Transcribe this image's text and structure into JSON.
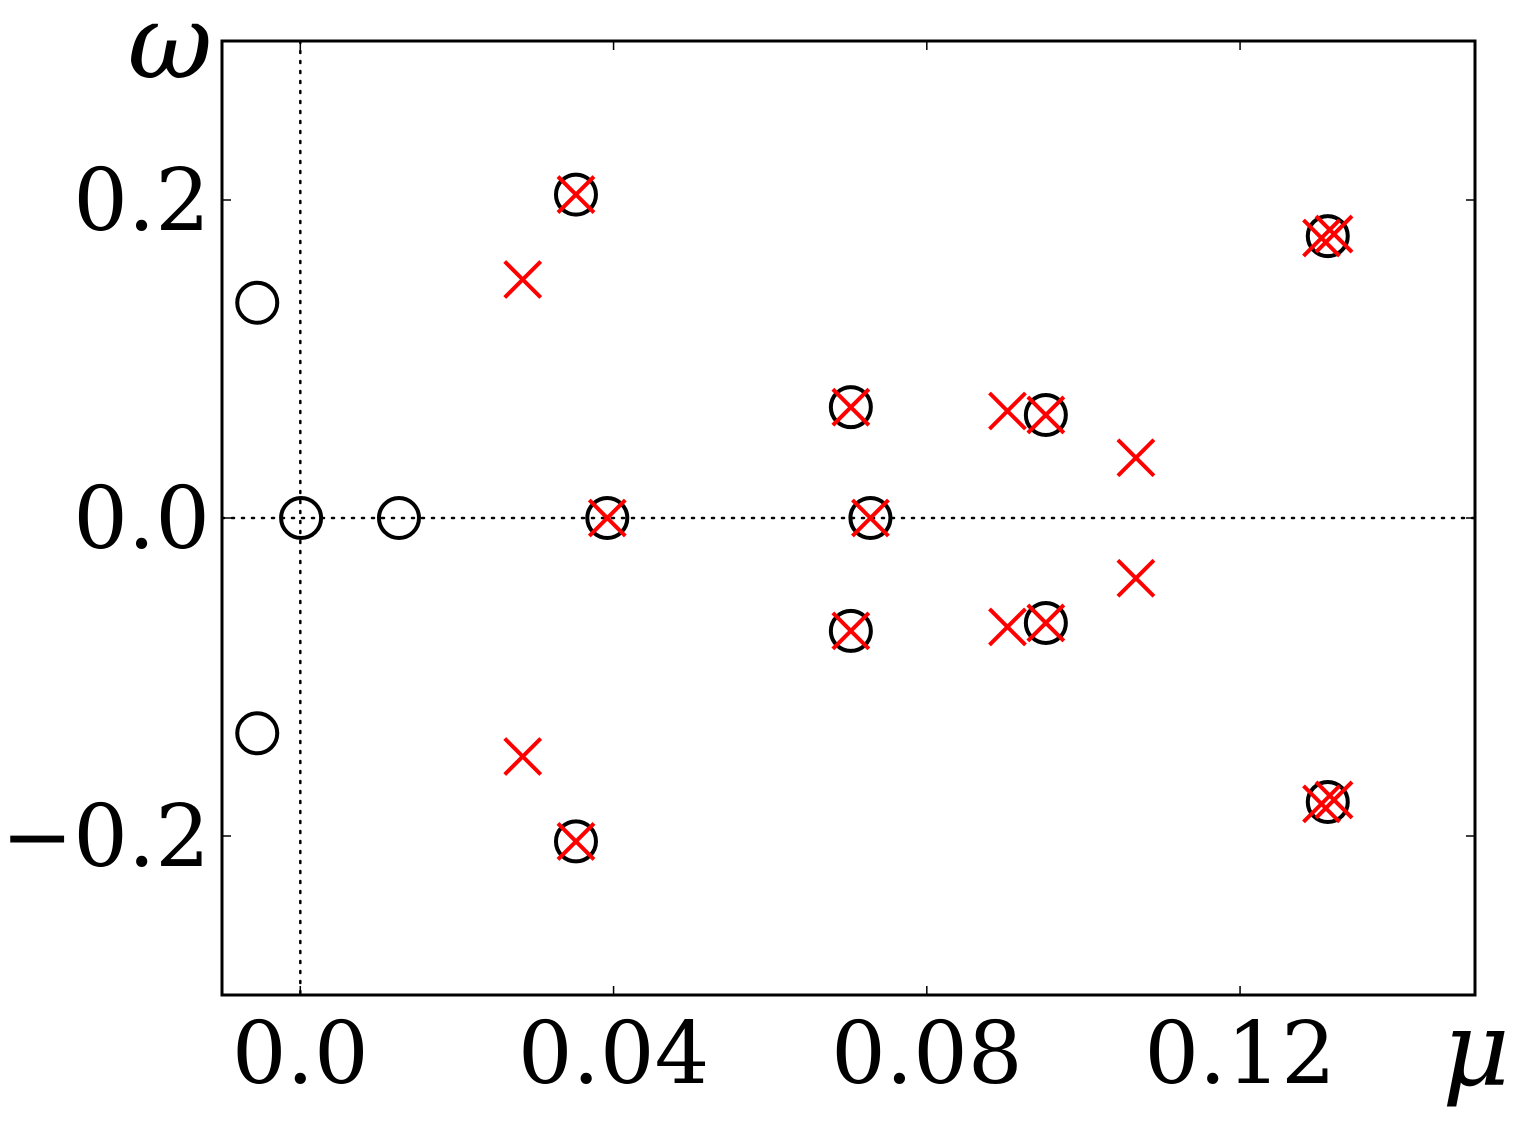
{
  "chart_data": {
    "type": "scatter",
    "title": "",
    "xlabel": "μ",
    "ylabel": "ω",
    "xlim": [
      -0.01,
      0.15
    ],
    "ylim": [
      -0.3,
      0.3
    ],
    "grid": false,
    "reference_lines": {
      "x": 0.0,
      "y": 0.0,
      "style": "dotted"
    },
    "x_ticks": [
      {
        "value": 0.0,
        "label": "0.0"
      },
      {
        "value": 0.04,
        "label": "0.04"
      },
      {
        "value": 0.08,
        "label": "0.08"
      },
      {
        "value": 0.12,
        "label": "0.12"
      }
    ],
    "y_ticks": [
      {
        "value": 0.2,
        "label": "0.2"
      },
      {
        "value": 0.0,
        "label": "0.0"
      },
      {
        "value": -0.2,
        "label": "−0.2"
      }
    ],
    "series": [
      {
        "marker": "open-circle",
        "color": "#000000",
        "points": [
          {
            "x": -0.0055,
            "y": 0.1354
          },
          {
            "x": -0.0055,
            "y": -0.1354
          },
          {
            "x": 0.0001,
            "y": 0.0
          },
          {
            "x": 0.0126,
            "y": 0.0
          },
          {
            "x": 0.0392,
            "y": 0.0
          },
          {
            "x": 0.0352,
            "y": 0.2034
          },
          {
            "x": 0.0352,
            "y": -0.2034
          },
          {
            "x": 0.0703,
            "y": 0.0697
          },
          {
            "x": 0.0703,
            "y": -0.071
          },
          {
            "x": 0.0728,
            "y": 0.0
          },
          {
            "x": 0.0952,
            "y": 0.0648
          },
          {
            "x": 0.0952,
            "y": -0.066
          },
          {
            "x": 0.1312,
            "y": 0.1773
          },
          {
            "x": 0.1312,
            "y": -0.1786
          }
        ]
      },
      {
        "marker": "x",
        "color": "#ff0000",
        "points": [
          {
            "x": 0.0284,
            "y": 0.15
          },
          {
            "x": 0.0284,
            "y": -0.15
          },
          {
            "x": 0.0352,
            "y": 0.2034
          },
          {
            "x": 0.0352,
            "y": -0.2034
          },
          {
            "x": 0.0392,
            "y": 0.0
          },
          {
            "x": 0.0703,
            "y": 0.0697
          },
          {
            "x": 0.0703,
            "y": -0.071
          },
          {
            "x": 0.0728,
            "y": 0.0
          },
          {
            "x": 0.0903,
            "y": 0.0673
          },
          {
            "x": 0.0903,
            "y": -0.0685
          },
          {
            "x": 0.0952,
            "y": 0.0648
          },
          {
            "x": 0.0952,
            "y": -0.066
          },
          {
            "x": 0.1067,
            "y": 0.0379
          },
          {
            "x": 0.1067,
            "y": -0.0379
          },
          {
            "x": 0.1304,
            "y": 0.1761
          },
          {
            "x": 0.132,
            "y": 0.1786
          },
          {
            "x": 0.1304,
            "y": -0.1798
          },
          {
            "x": 0.132,
            "y": -0.1773
          }
        ]
      }
    ]
  }
}
